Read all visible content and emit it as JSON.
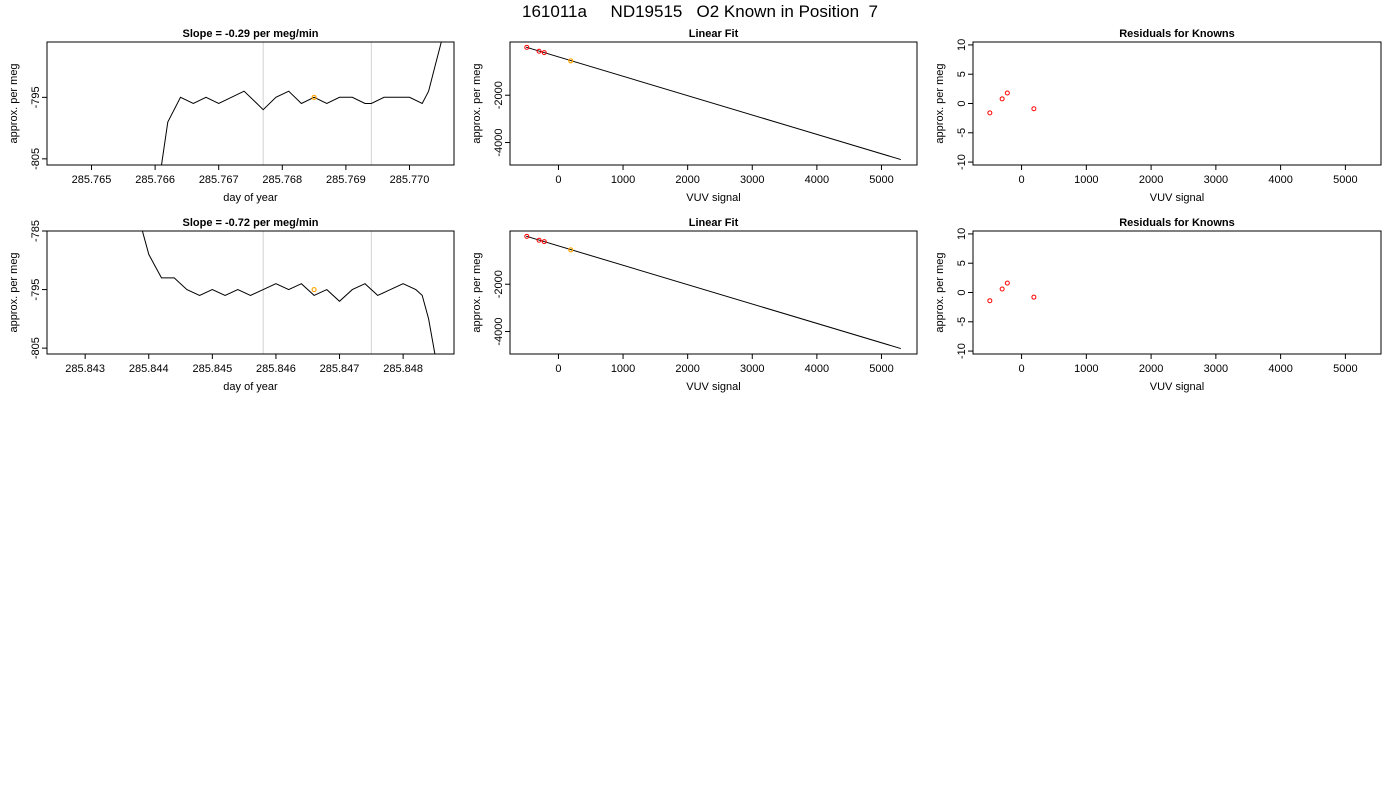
{
  "main_title": "161011a     ND19515   O2 Known in Position  7",
  "colors": {
    "line": "#000000",
    "gridline": "#d3d3d3",
    "point": "#ff0000",
    "highlight": "#ffa500"
  },
  "chart_data": [
    {
      "id": "row1-time",
      "type": "line",
      "title": "Slope =  -0.29  per meg/min",
      "xlabel": "day of year",
      "ylabel": "approx. per meg",
      "xlim": [
        285.7643,
        285.7707
      ],
      "ylim": [
        -806,
        -786
      ],
      "xticks": [
        285.765,
        285.766,
        285.767,
        285.768,
        285.769,
        285.77
      ],
      "xtick_labels": [
        "285.765",
        "285.766",
        "285.767",
        "285.768",
        "285.769",
        "285.770"
      ],
      "yticks": [
        -805,
        -795
      ],
      "ytick_labels": [
        "-805",
        "-795"
      ],
      "vlines": [
        285.7677,
        285.7694
      ],
      "x": [
        285.7661,
        285.7662,
        285.7664,
        285.7666,
        285.7668,
        285.767,
        285.7672,
        285.7674,
        285.7676,
        285.7677,
        285.7679,
        285.7681,
        285.7683,
        285.7685,
        285.7687,
        285.7689,
        285.7691,
        285.7693,
        285.7694,
        285.7696,
        285.7698,
        285.77,
        285.7702,
        285.7703,
        285.7704,
        285.7705
      ],
      "y": [
        -806,
        -799,
        -795,
        -796,
        -795,
        -796,
        -795,
        -794,
        -796,
        -797,
        -795,
        -794,
        -796,
        -795,
        -796,
        -795,
        -795,
        -796,
        -796,
        -795,
        -795,
        -795,
        -796,
        -794,
        -790,
        -786
      ],
      "highlight_points": [
        {
          "x": 285.7685,
          "y": -795
        }
      ]
    },
    {
      "id": "row1-fit",
      "type": "scatter",
      "title": "Linear Fit",
      "xlabel": "VUV signal",
      "ylabel": "approx. per meg",
      "xlim": [
        -750,
        5550
      ],
      "ylim": [
        -4950,
        250
      ],
      "xticks": [
        0,
        1000,
        2000,
        3000,
        4000,
        5000
      ],
      "xtick_labels": [
        "0",
        "1000",
        "2000",
        "3000",
        "4000",
        "5000"
      ],
      "yticks": [
        -4000,
        -2000
      ],
      "ytick_labels": [
        "-4000",
        "-2000"
      ],
      "fit_line": {
        "x": [
          -500,
          5300
        ],
        "y": [
          30,
          -4720
        ]
      },
      "points": [
        {
          "x": -490,
          "y": 25
        },
        {
          "x": -300,
          "y": -140
        },
        {
          "x": -220,
          "y": -200
        }
      ],
      "highlight_points": [
        {
          "x": 190,
          "y": -545
        }
      ]
    },
    {
      "id": "row1-resid",
      "type": "scatter",
      "title": "Residuals for Knowns",
      "xlabel": "VUV signal",
      "ylabel": "approx. per meg",
      "xlim": [
        -750,
        5550
      ],
      "ylim": [
        -10.5,
        10.5
      ],
      "xticks": [
        0,
        1000,
        2000,
        3000,
        4000,
        5000
      ],
      "xtick_labels": [
        "0",
        "1000",
        "2000",
        "3000",
        "4000",
        "5000"
      ],
      "yticks": [
        -10,
        -5,
        0,
        5,
        10
      ],
      "ytick_labels": [
        "-10",
        "-5",
        "0",
        "5",
        "10"
      ],
      "points": [
        {
          "x": -490,
          "y": -1.6
        },
        {
          "x": -300,
          "y": 0.8
        },
        {
          "x": -220,
          "y": 1.8
        },
        {
          "x": 190,
          "y": -0.9
        }
      ]
    },
    {
      "id": "row2-time",
      "type": "line",
      "title": "Slope =  -0.72  per meg/min",
      "xlabel": "day of year",
      "ylabel": "approx. per meg",
      "xlim": [
        285.8424,
        285.8488
      ],
      "ylim": [
        -806,
        -785
      ],
      "xticks": [
        285.843,
        285.844,
        285.845,
        285.846,
        285.847,
        285.848
      ],
      "xtick_labels": [
        "285.843",
        "285.844",
        "285.845",
        "285.846",
        "285.847",
        "285.848"
      ],
      "yticks": [
        -805,
        -795,
        -785
      ],
      "ytick_labels": [
        "-805",
        "-795",
        "-785"
      ],
      "vlines": [
        285.8458,
        285.8475
      ],
      "x": [
        285.8439,
        285.844,
        285.8441,
        285.8442,
        285.8444,
        285.8446,
        285.8448,
        285.845,
        285.8452,
        285.8454,
        285.8456,
        285.8458,
        285.846,
        285.8462,
        285.8464,
        285.8466,
        285.8468,
        285.847,
        285.8472,
        285.8474,
        285.8476,
        285.8478,
        285.848,
        285.8482,
        285.8483,
        285.8484,
        285.8485
      ],
      "y": [
        -785,
        -789,
        -791,
        -793,
        -793,
        -795,
        -796,
        -795,
        -796,
        -795,
        -796,
        -795,
        -794,
        -795,
        -794,
        -796,
        -795,
        -797,
        -795,
        -794,
        -796,
        -795,
        -794,
        -795,
        -796,
        -800,
        -806
      ],
      "highlight_points": [
        {
          "x": 285.8466,
          "y": -795
        }
      ]
    },
    {
      "id": "row2-fit",
      "type": "scatter",
      "title": "Linear Fit",
      "xlabel": "VUV signal",
      "ylabel": "approx. per meg",
      "xlim": [
        -750,
        5550
      ],
      "ylim": [
        -4950,
        250
      ],
      "xticks": [
        0,
        1000,
        2000,
        3000,
        4000,
        5000
      ],
      "xtick_labels": [
        "0",
        "1000",
        "2000",
        "3000",
        "4000",
        "5000"
      ],
      "yticks": [
        -4000,
        -2000
      ],
      "ytick_labels": [
        "-4000",
        "-2000"
      ],
      "fit_line": {
        "x": [
          -500,
          5300
        ],
        "y": [
          30,
          -4720
        ]
      },
      "points": [
        {
          "x": -490,
          "y": 25
        },
        {
          "x": -300,
          "y": -140
        },
        {
          "x": -220,
          "y": -200
        }
      ],
      "highlight_points": [
        {
          "x": 190,
          "y": -545
        }
      ]
    },
    {
      "id": "row2-resid",
      "type": "scatter",
      "title": "Residuals for Knowns",
      "xlabel": "VUV signal",
      "ylabel": "approx. per meg",
      "xlim": [
        -750,
        5550
      ],
      "ylim": [
        -10.5,
        10.5
      ],
      "xticks": [
        0,
        1000,
        2000,
        3000,
        4000,
        5000
      ],
      "xtick_labels": [
        "0",
        "1000",
        "2000",
        "3000",
        "4000",
        "5000"
      ],
      "yticks": [
        -10,
        -5,
        0,
        5,
        10
      ],
      "ytick_labels": [
        "-10",
        "-5",
        "0",
        "5",
        "10"
      ],
      "points": [
        {
          "x": -490,
          "y": -1.4
        },
        {
          "x": -300,
          "y": 0.6
        },
        {
          "x": -220,
          "y": 1.6
        },
        {
          "x": 190,
          "y": -0.8
        }
      ]
    }
  ]
}
